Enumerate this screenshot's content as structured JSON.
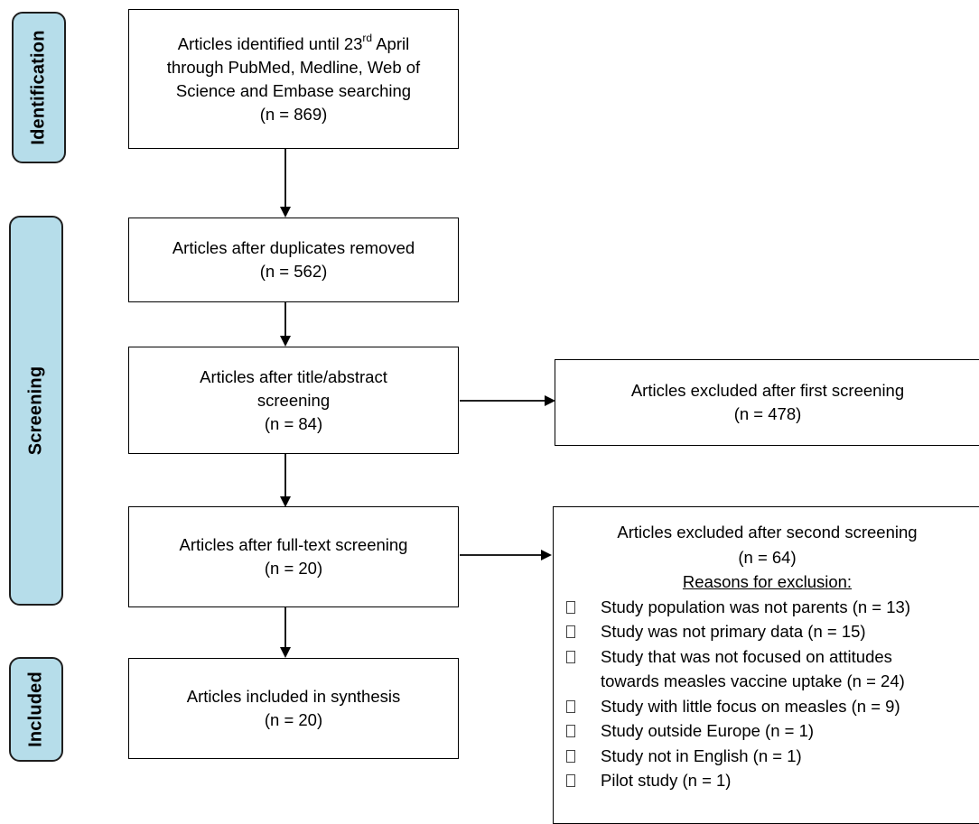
{
  "phases": {
    "identification": "Identification",
    "screening": "Screening",
    "included": "Included"
  },
  "boxes": {
    "identified": {
      "line1_pre": "Articles identified until 23",
      "line1_sup": "rd",
      "line1_post": " April",
      "line2": "through PubMed, Medline, Web of",
      "line3": "Science and Embase searching",
      "count": "(n = 869)"
    },
    "duplicates_removed": {
      "line1": "Articles after duplicates removed",
      "count": "(n = 562)"
    },
    "title_abstract": {
      "line1": "Articles after title/abstract",
      "line2": "screening",
      "count": "(n = 84)"
    },
    "full_text": {
      "line1": "Articles after full-text screening",
      "count": "(n = 20)"
    },
    "included": {
      "line1": "Articles included in synthesis",
      "count": "(n = 20)"
    },
    "excluded_first": {
      "line1": "Articles excluded after first screening",
      "count": "(n = 478)"
    },
    "excluded_second": {
      "line1": "Articles excluded after second screening",
      "count": "(n = 64)",
      "reasons_title": "Reasons for exclusion:",
      "reasons": [
        "Study population was not parents (n = 13)",
        "Study was not primary data (n = 15)",
        "Study that was not focused on attitudes",
        "towards measles vaccine uptake (n = 24)",
        "Study with little focus on measles (n = 9)",
        "Study outside Europe (n = 1)",
        "Study not in English (n = 1)",
        "Pilot study (n = 1)"
      ]
    }
  }
}
